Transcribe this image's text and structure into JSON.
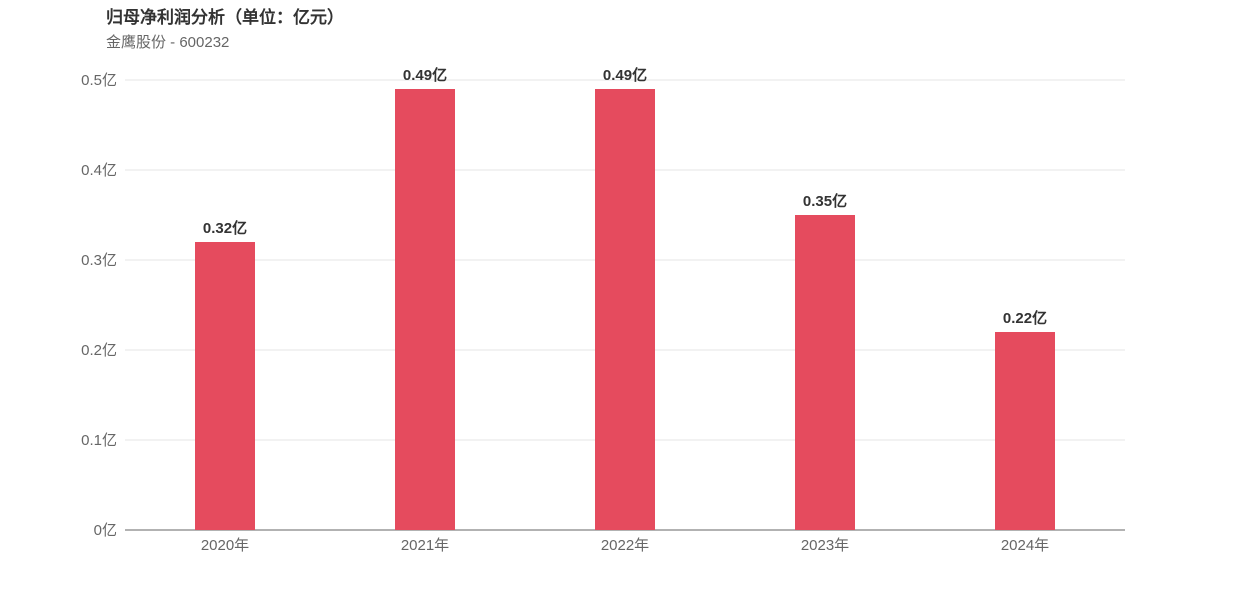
{
  "header": {
    "title": "归母净利润分析（单位：亿元）",
    "subtitle": "金鹰股份 - 600232"
  },
  "chart_data": {
    "type": "bar",
    "categories": [
      "2020年",
      "2021年",
      "2022年",
      "2023年",
      "2024年"
    ],
    "values": [
      0.32,
      0.49,
      0.49,
      0.35,
      0.22
    ],
    "value_labels": [
      "0.32亿",
      "0.49亿",
      "0.49亿",
      "0.35亿",
      "0.22亿"
    ],
    "y_ticks": [
      0,
      0.1,
      0.2,
      0.3,
      0.4,
      0.5
    ],
    "y_tick_labels": [
      "0亿",
      "0.1亿",
      "0.2亿",
      "0.3亿",
      "0.4亿",
      "0.5亿"
    ],
    "ylim": [
      0,
      0.5
    ],
    "grid": true,
    "bar_color": "#e54b5e",
    "grid_color": "#e6e6e6",
    "axis_color": "#666666"
  }
}
